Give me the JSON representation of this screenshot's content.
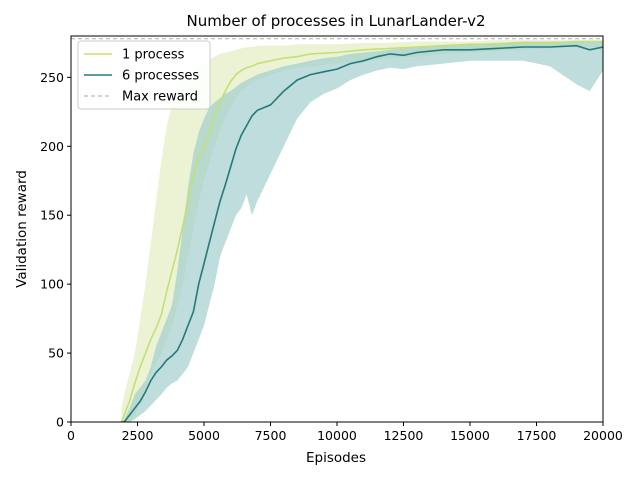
{
  "chart_data": {
    "type": "line",
    "title": "Number of processes in LunarLander-v2",
    "xlabel": "Episodes",
    "ylabel": "Validation reward",
    "xlim": [
      0,
      20000
    ],
    "ylim": [
      0,
      280
    ],
    "x_ticks": [
      0,
      2500,
      5000,
      7500,
      10000,
      12500,
      15000,
      17500,
      20000
    ],
    "y_ticks": [
      0,
      50,
      100,
      150,
      200,
      250
    ],
    "grid": false,
    "legend_position": "top-left",
    "max_reward": 278,
    "series": [
      {
        "name": "1 process",
        "color": "#c4df76",
        "band_color": "#dbeab0",
        "x": [
          1900,
          2000,
          2200,
          2400,
          2600,
          2800,
          3000,
          3200,
          3400,
          3600,
          3800,
          4000,
          4200,
          4400,
          4600,
          4800,
          5000,
          5200,
          5400,
          5600,
          5800,
          6000,
          6200,
          6400,
          6600,
          6800,
          7000,
          7500,
          8000,
          8500,
          9000,
          10000,
          11000,
          12000,
          13000,
          14000,
          15000,
          16000,
          17000,
          18000,
          19000,
          20000
        ],
        "mean": [
          0,
          5,
          15,
          28,
          40,
          50,
          60,
          68,
          78,
          95,
          110,
          125,
          142,
          160,
          178,
          192,
          200,
          210,
          222,
          232,
          240,
          247,
          252,
          255,
          257,
          258,
          260,
          262,
          264,
          265,
          267,
          268,
          270,
          271,
          272,
          273,
          274,
          274,
          275,
          275,
          276,
          276
        ],
        "upper": [
          10,
          20,
          35,
          50,
          75,
          100,
          130,
          160,
          190,
          215,
          230,
          240,
          248,
          252,
          255,
          258,
          260,
          263,
          265,
          267,
          268,
          269,
          270,
          271,
          272,
          272,
          273,
          273,
          273,
          274,
          274,
          274,
          275,
          275,
          276,
          276,
          276,
          277,
          277,
          277,
          277,
          277
        ],
        "lower": [
          0,
          0,
          0,
          5,
          15,
          25,
          35,
          42,
          50,
          60,
          70,
          85,
          100,
          120,
          140,
          160,
          175,
          188,
          200,
          212,
          220,
          228,
          235,
          240,
          243,
          246,
          248,
          252,
          255,
          257,
          258,
          260,
          262,
          264,
          265,
          267,
          268,
          269,
          270,
          271,
          272,
          272
        ]
      },
      {
        "name": "6 processes",
        "color": "#247a7a",
        "band_color": "#9ccbc9",
        "x": [
          1900,
          2000,
          2200,
          2400,
          2600,
          2800,
          3000,
          3200,
          3400,
          3600,
          3800,
          4000,
          4200,
          4400,
          4600,
          4800,
          5000,
          5200,
          5400,
          5600,
          5800,
          6000,
          6200,
          6400,
          6600,
          6800,
          7000,
          7500,
          8000,
          8500,
          9000,
          9500,
          10000,
          10500,
          11000,
          11500,
          12000,
          12500,
          13000,
          14000,
          15000,
          16000,
          17000,
          18000,
          19000,
          19500,
          20000
        ],
        "mean": [
          0,
          0,
          5,
          10,
          15,
          22,
          30,
          36,
          40,
          45,
          48,
          52,
          60,
          70,
          80,
          100,
          115,
          130,
          145,
          160,
          172,
          185,
          198,
          208,
          215,
          222,
          226,
          230,
          240,
          248,
          252,
          254,
          256,
          260,
          262,
          265,
          267,
          266,
          268,
          270,
          270,
          271,
          272,
          272,
          273,
          270,
          272
        ],
        "upper": [
          0,
          2,
          10,
          20,
          25,
          30,
          40,
          55,
          65,
          75,
          85,
          110,
          140,
          170,
          195,
          210,
          220,
          228,
          232,
          235,
          238,
          240,
          243,
          246,
          248,
          250,
          252,
          255,
          258,
          260,
          262,
          264,
          265,
          267,
          268,
          269,
          270,
          271,
          272,
          273,
          274,
          275,
          276,
          276,
          276,
          276,
          276
        ],
        "lower": [
          0,
          0,
          0,
          2,
          5,
          8,
          12,
          16,
          20,
          25,
          28,
          30,
          35,
          40,
          50,
          60,
          70,
          85,
          100,
          120,
          130,
          140,
          150,
          155,
          165,
          150,
          160,
          180,
          200,
          220,
          232,
          238,
          242,
          248,
          252,
          255,
          257,
          256,
          258,
          260,
          262,
          262,
          262,
          258,
          245,
          240,
          255
        ]
      },
      {
        "name": "Max reward",
        "color": "#aaaaaa",
        "dashed": true,
        "y": 278
      }
    ]
  }
}
